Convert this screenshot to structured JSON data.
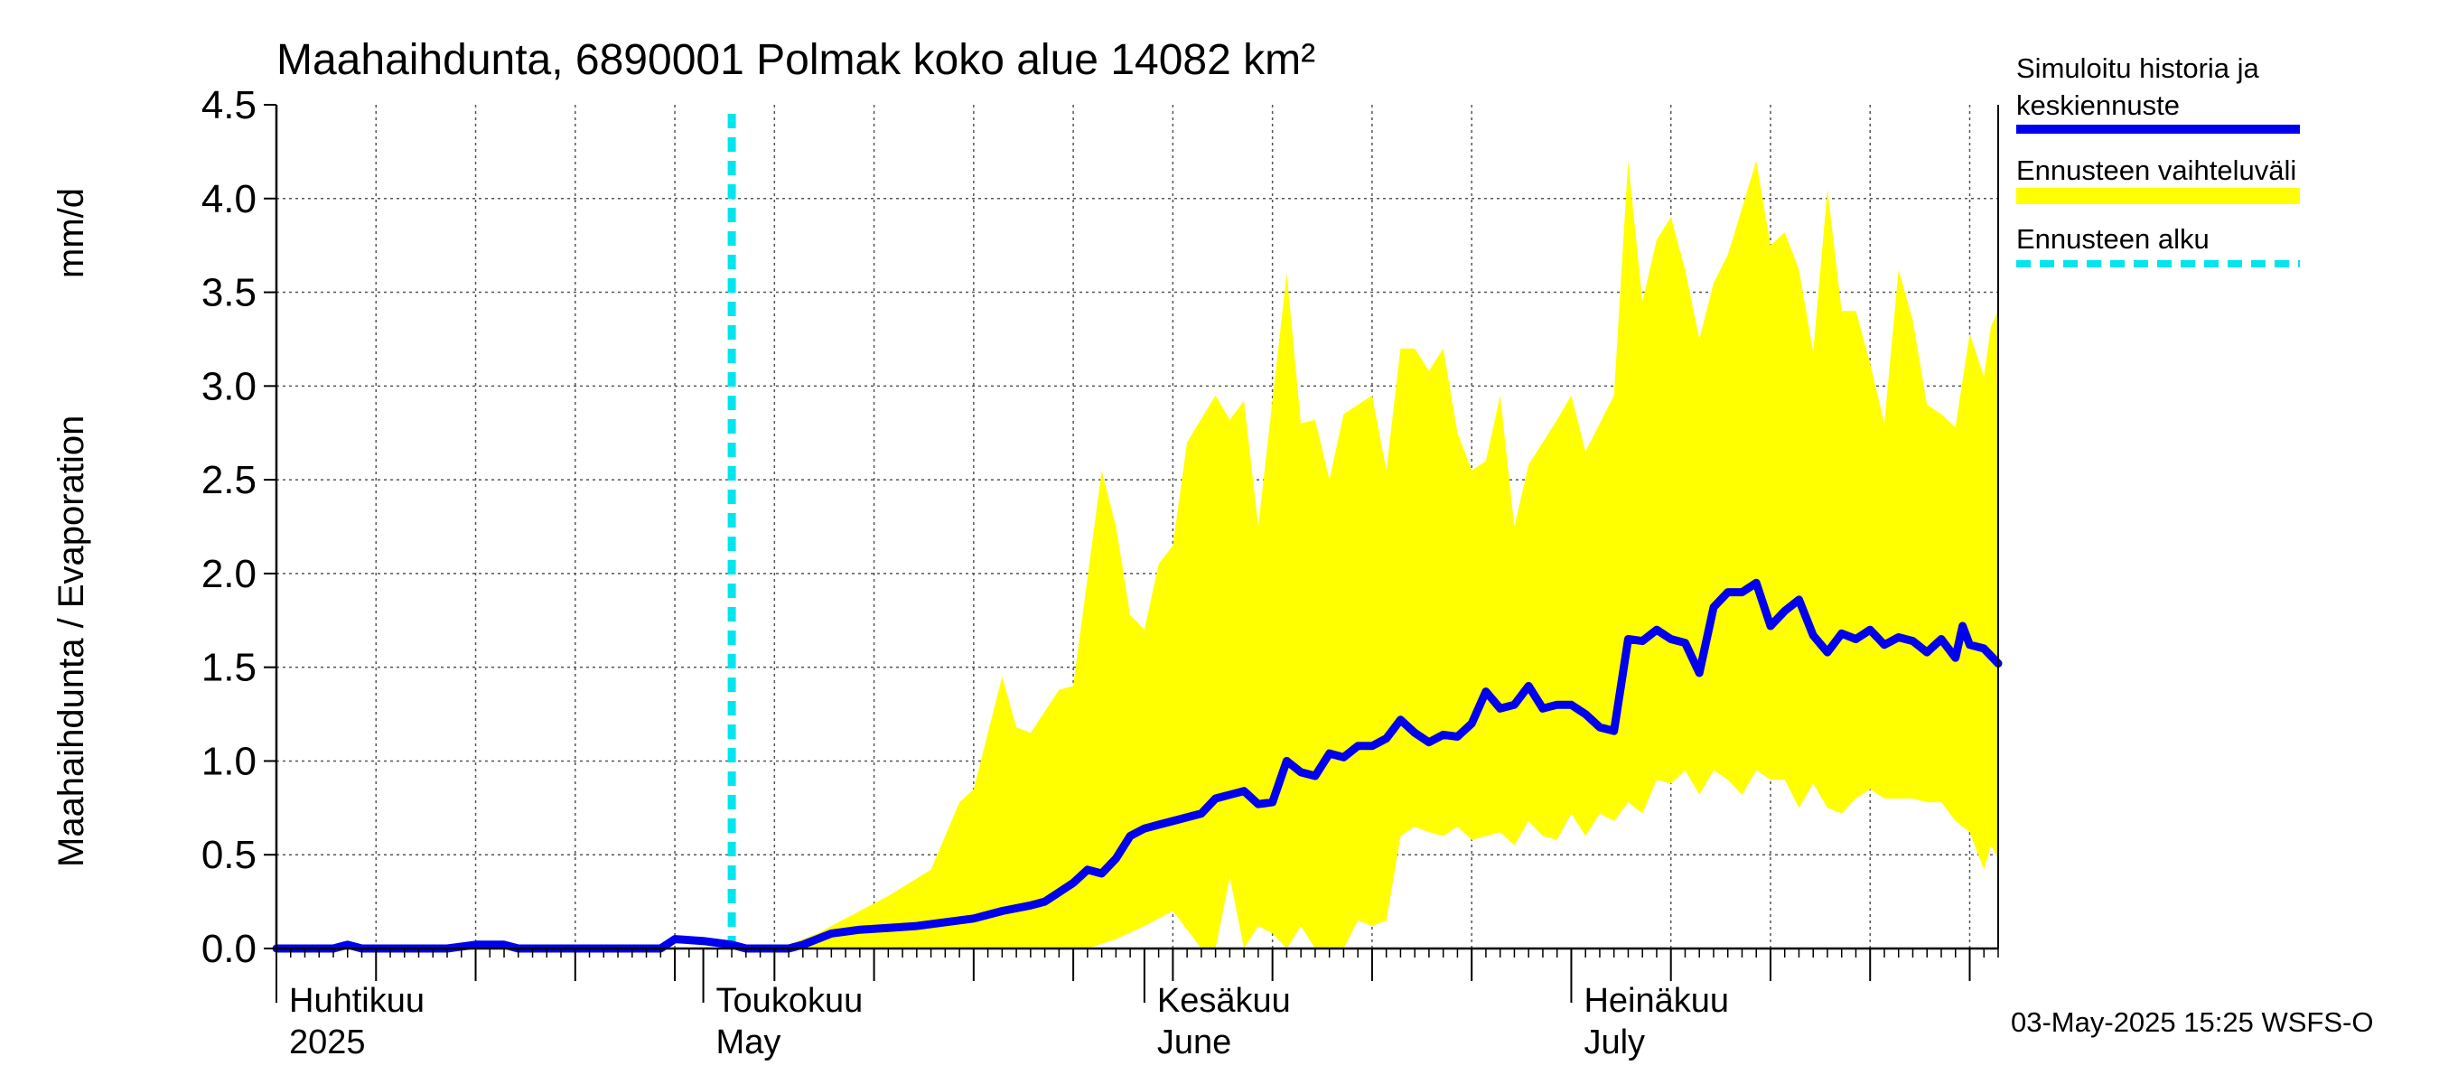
{
  "chart_data": {
    "type": "line",
    "title": "Maahaihdunta, 6890001 Polmak koko alue 14082 km²",
    "ylabel_left": "Maahaihdunta / Evaporation",
    "ylabel_unit": "mm/d",
    "ylim": [
      0,
      4.5
    ],
    "yticks": [
      "0.0",
      "0.5",
      "1.0",
      "1.5",
      "2.0",
      "2.5",
      "3.0",
      "3.5",
      "4.0",
      "4.5"
    ],
    "xlim": [
      "2025-04-01",
      "2025-07-31"
    ],
    "forecast_start": "2025-05-03",
    "month_labels": [
      {
        "date": "2025-04-01",
        "fi": "Huhtikuu",
        "en": "2025"
      },
      {
        "date": "2025-05-01",
        "fi": "Toukokuu",
        "en": "May"
      },
      {
        "date": "2025-06-01",
        "fi": "Kesäkuu",
        "en": "June"
      },
      {
        "date": "2025-07-01",
        "fi": "Heinäkuu",
        "en": "July"
      }
    ],
    "grid": true,
    "series": [
      {
        "name": "Simuloitu historia ja keskiennuste",
        "color": "#0000ee",
        "points": [
          [
            "2025-04-01",
            0.0
          ],
          [
            "2025-04-03",
            0.0
          ],
          [
            "2025-04-05",
            0.0
          ],
          [
            "2025-04-06",
            0.02
          ],
          [
            "2025-04-07",
            0.0
          ],
          [
            "2025-04-10",
            0.0
          ],
          [
            "2025-04-13",
            0.0
          ],
          [
            "2025-04-15",
            0.02
          ],
          [
            "2025-04-17",
            0.02
          ],
          [
            "2025-04-18",
            0.0
          ],
          [
            "2025-04-22",
            0.0
          ],
          [
            "2025-04-25",
            0.0
          ],
          [
            "2025-04-28",
            0.0
          ],
          [
            "2025-04-29",
            0.05
          ],
          [
            "2025-05-01",
            0.04
          ],
          [
            "2025-05-03",
            0.02
          ],
          [
            "2025-05-04",
            0.0
          ],
          [
            "2025-05-07",
            0.0
          ],
          [
            "2025-05-08",
            0.02
          ],
          [
            "2025-05-10",
            0.08
          ],
          [
            "2025-05-12",
            0.1
          ],
          [
            "2025-05-14",
            0.11
          ],
          [
            "2025-05-16",
            0.12
          ],
          [
            "2025-05-18",
            0.14
          ],
          [
            "2025-05-20",
            0.16
          ],
          [
            "2025-05-22",
            0.2
          ],
          [
            "2025-05-24",
            0.23
          ],
          [
            "2025-05-25",
            0.25
          ],
          [
            "2025-05-26",
            0.3
          ],
          [
            "2025-05-27",
            0.35
          ],
          [
            "2025-05-28",
            0.42
          ],
          [
            "2025-05-29",
            0.4
          ],
          [
            "2025-05-30",
            0.48
          ],
          [
            "2025-05-31",
            0.6
          ],
          [
            "2025-06-01",
            0.64
          ],
          [
            "2025-06-02",
            0.66
          ],
          [
            "2025-06-03",
            0.68
          ],
          [
            "2025-06-05",
            0.72
          ],
          [
            "2025-06-06",
            0.8
          ],
          [
            "2025-06-07",
            0.82
          ],
          [
            "2025-06-08",
            0.84
          ],
          [
            "2025-06-09",
            0.77
          ],
          [
            "2025-06-10",
            0.78
          ],
          [
            "2025-06-11",
            1.0
          ],
          [
            "2025-06-12",
            0.94
          ],
          [
            "2025-06-13",
            0.92
          ],
          [
            "2025-06-14",
            1.04
          ],
          [
            "2025-06-15",
            1.02
          ],
          [
            "2025-06-16",
            1.08
          ],
          [
            "2025-06-17",
            1.08
          ],
          [
            "2025-06-18",
            1.12
          ],
          [
            "2025-06-19",
            1.22
          ],
          [
            "2025-06-20",
            1.15
          ],
          [
            "2025-06-21",
            1.1
          ],
          [
            "2025-06-22",
            1.14
          ],
          [
            "2025-06-23",
            1.13
          ],
          [
            "2025-06-24",
            1.2
          ],
          [
            "2025-06-25",
            1.37
          ],
          [
            "2025-06-26",
            1.28
          ],
          [
            "2025-06-27",
            1.3
          ],
          [
            "2025-06-28",
            1.4
          ],
          [
            "2025-06-29",
            1.28
          ],
          [
            "2025-06-30",
            1.3
          ],
          [
            "2025-07-01",
            1.3
          ],
          [
            "2025-07-02",
            1.25
          ],
          [
            "2025-07-03",
            1.18
          ],
          [
            "2025-07-04",
            1.16
          ],
          [
            "2025-07-05",
            1.65
          ],
          [
            "2025-07-06",
            1.64
          ],
          [
            "2025-07-07",
            1.7
          ],
          [
            "2025-07-08",
            1.65
          ],
          [
            "2025-07-09",
            1.63
          ],
          [
            "2025-07-10",
            1.47
          ],
          [
            "2025-07-11",
            1.82
          ],
          [
            "2025-07-12",
            1.9
          ],
          [
            "2025-07-13",
            1.9
          ],
          [
            "2025-07-14",
            1.95
          ],
          [
            "2025-07-15",
            1.72
          ],
          [
            "2025-07-16",
            1.8
          ],
          [
            "2025-07-17",
            1.86
          ],
          [
            "2025-07-18",
            1.67
          ],
          [
            "2025-07-19",
            1.58
          ],
          [
            "2025-07-20",
            1.68
          ],
          [
            "2025-07-21",
            1.65
          ],
          [
            "2025-07-22",
            1.7
          ],
          [
            "2025-07-23",
            1.62
          ],
          [
            "2025-07-24",
            1.66
          ],
          [
            "2025-07-25",
            1.64
          ],
          [
            "2025-07-26",
            1.58
          ],
          [
            "2025-07-27",
            1.65
          ],
          [
            "2025-07-28",
            1.55
          ],
          [
            "2025-07-28.5",
            1.72
          ],
          [
            "2025-07-29",
            1.62
          ],
          [
            "2025-07-30",
            1.6
          ],
          [
            "2025-07-31",
            1.52
          ]
        ]
      },
      {
        "name": "Ennusteen vaihteluväli",
        "color": "#ffff00",
        "upper": [
          [
            "2025-05-03",
            0.02
          ],
          [
            "2025-05-07",
            0.02
          ],
          [
            "2025-05-09",
            0.08
          ],
          [
            "2025-05-12",
            0.2
          ],
          [
            "2025-05-14",
            0.28
          ],
          [
            "2025-05-17",
            0.42
          ],
          [
            "2025-05-19",
            0.78
          ],
          [
            "2025-05-20",
            0.85
          ],
          [
            "2025-05-22",
            1.45
          ],
          [
            "2025-05-23",
            1.18
          ],
          [
            "2025-05-24",
            1.15
          ],
          [
            "2025-05-26",
            1.38
          ],
          [
            "2025-05-27",
            1.4
          ],
          [
            "2025-05-29",
            2.55
          ],
          [
            "2025-05-30",
            2.25
          ],
          [
            "2025-05-31",
            1.78
          ],
          [
            "2025-06-01",
            1.7
          ],
          [
            "2025-06-02",
            2.05
          ],
          [
            "2025-06-03",
            2.15
          ],
          [
            "2025-06-04",
            2.7
          ],
          [
            "2025-06-06",
            2.95
          ],
          [
            "2025-06-07",
            2.82
          ],
          [
            "2025-06-08",
            2.92
          ],
          [
            "2025-06-09",
            2.25
          ],
          [
            "2025-06-11",
            3.6
          ],
          [
            "2025-06-12",
            2.8
          ],
          [
            "2025-06-13",
            2.82
          ],
          [
            "2025-06-14",
            2.5
          ],
          [
            "2025-06-15",
            2.85
          ],
          [
            "2025-06-17",
            2.95
          ],
          [
            "2025-06-18",
            2.55
          ],
          [
            "2025-06-19",
            3.2
          ],
          [
            "2025-06-20",
            3.2
          ],
          [
            "2025-06-21",
            3.08
          ],
          [
            "2025-06-22",
            3.2
          ],
          [
            "2025-06-23",
            2.75
          ],
          [
            "2025-06-24",
            2.55
          ],
          [
            "2025-06-25",
            2.6
          ],
          [
            "2025-06-26",
            2.95
          ],
          [
            "2025-06-27",
            2.25
          ],
          [
            "2025-06-28",
            2.58
          ],
          [
            "2025-06-29",
            2.7
          ],
          [
            "2025-06-30",
            2.82
          ],
          [
            "2025-07-01",
            2.95
          ],
          [
            "2025-07-02",
            2.65
          ],
          [
            "2025-07-04",
            2.95
          ],
          [
            "2025-07-05",
            4.2
          ],
          [
            "2025-07-06",
            3.45
          ],
          [
            "2025-07-07",
            3.78
          ],
          [
            "2025-07-08",
            3.9
          ],
          [
            "2025-07-09",
            3.62
          ],
          [
            "2025-07-10",
            3.25
          ],
          [
            "2025-07-11",
            3.55
          ],
          [
            "2025-07-12",
            3.7
          ],
          [
            "2025-07-13",
            3.95
          ],
          [
            "2025-07-14",
            4.2
          ],
          [
            "2025-07-15",
            3.75
          ],
          [
            "2025-07-16",
            3.82
          ],
          [
            "2025-07-17",
            3.62
          ],
          [
            "2025-07-18",
            3.18
          ],
          [
            "2025-07-19",
            4.05
          ],
          [
            "2025-07-20",
            3.4
          ],
          [
            "2025-07-21",
            3.4
          ],
          [
            "2025-07-22",
            3.12
          ],
          [
            "2025-07-23",
            2.8
          ],
          [
            "2025-07-24",
            3.62
          ],
          [
            "2025-07-25",
            3.35
          ],
          [
            "2025-07-26",
            2.9
          ],
          [
            "2025-07-27",
            2.85
          ],
          [
            "2025-07-28",
            2.78
          ],
          [
            "2025-07-29",
            3.28
          ],
          [
            "2025-07-30",
            3.05
          ],
          [
            "2025-07-30.5",
            3.32
          ],
          [
            "2025-07-31",
            3.4
          ]
        ],
        "lower": [
          [
            "2025-05-03",
            0.0
          ],
          [
            "2025-05-20",
            0.0
          ],
          [
            "2025-05-22",
            0.0
          ],
          [
            "2025-05-24",
            0.0
          ],
          [
            "2025-05-26",
            0.0
          ],
          [
            "2025-05-28",
            0.0
          ],
          [
            "2025-05-30",
            0.05
          ],
          [
            "2025-06-01",
            0.12
          ],
          [
            "2025-06-03",
            0.2
          ],
          [
            "2025-06-05",
            0.0
          ],
          [
            "2025-06-06",
            0.0
          ],
          [
            "2025-06-07",
            0.38
          ],
          [
            "2025-06-08",
            0.0
          ],
          [
            "2025-06-09",
            0.12
          ],
          [
            "2025-06-10",
            0.08
          ],
          [
            "2025-06-11",
            0.0
          ],
          [
            "2025-06-12",
            0.12
          ],
          [
            "2025-06-13",
            0.0
          ],
          [
            "2025-06-14",
            0.0
          ],
          [
            "2025-06-15",
            0.0
          ],
          [
            "2025-06-16",
            0.15
          ],
          [
            "2025-06-17",
            0.12
          ],
          [
            "2025-06-18",
            0.15
          ],
          [
            "2025-06-19",
            0.6
          ],
          [
            "2025-06-20",
            0.65
          ],
          [
            "2025-06-21",
            0.62
          ],
          [
            "2025-06-22",
            0.6
          ],
          [
            "2025-06-23",
            0.65
          ],
          [
            "2025-06-24",
            0.58
          ],
          [
            "2025-06-26",
            0.62
          ],
          [
            "2025-06-27",
            0.55
          ],
          [
            "2025-06-28",
            0.68
          ],
          [
            "2025-06-29",
            0.6
          ],
          [
            "2025-06-30",
            0.58
          ],
          [
            "2025-07-01",
            0.72
          ],
          [
            "2025-07-02",
            0.6
          ],
          [
            "2025-07-03",
            0.72
          ],
          [
            "2025-07-04",
            0.68
          ],
          [
            "2025-07-05",
            0.78
          ],
          [
            "2025-07-06",
            0.72
          ],
          [
            "2025-07-07",
            0.9
          ],
          [
            "2025-07-08",
            0.88
          ],
          [
            "2025-07-09",
            0.95
          ],
          [
            "2025-07-10",
            0.82
          ],
          [
            "2025-07-11",
            0.95
          ],
          [
            "2025-07-12",
            0.9
          ],
          [
            "2025-07-13",
            0.82
          ],
          [
            "2025-07-14",
            0.95
          ],
          [
            "2025-07-15",
            0.9
          ],
          [
            "2025-07-16",
            0.9
          ],
          [
            "2025-07-17",
            0.75
          ],
          [
            "2025-07-18",
            0.88
          ],
          [
            "2025-07-19",
            0.75
          ],
          [
            "2025-07-20",
            0.72
          ],
          [
            "2025-07-21",
            0.8
          ],
          [
            "2025-07-22",
            0.85
          ],
          [
            "2025-07-23",
            0.8
          ],
          [
            "2025-07-24",
            0.8
          ],
          [
            "2025-07-25",
            0.8
          ],
          [
            "2025-07-26",
            0.78
          ],
          [
            "2025-07-27",
            0.78
          ],
          [
            "2025-07-28",
            0.68
          ],
          [
            "2025-07-29",
            0.62
          ],
          [
            "2025-07-30",
            0.42
          ],
          [
            "2025-07-30.5",
            0.55
          ],
          [
            "2025-07-31",
            0.48
          ]
        ]
      },
      {
        "name": "Ennusteen alku",
        "color": "#00e5ee"
      }
    ],
    "legend_position": "right",
    "legend": [
      {
        "line1": "Simuloitu historia ja",
        "line2": "keskiennuste"
      },
      {
        "line1": "Ennusteen vaihteluväli",
        "line2": ""
      },
      {
        "line1": "Ennusteen alku",
        "line2": ""
      }
    ]
  },
  "footer": "03-May-2025 15:25 WSFS-O"
}
